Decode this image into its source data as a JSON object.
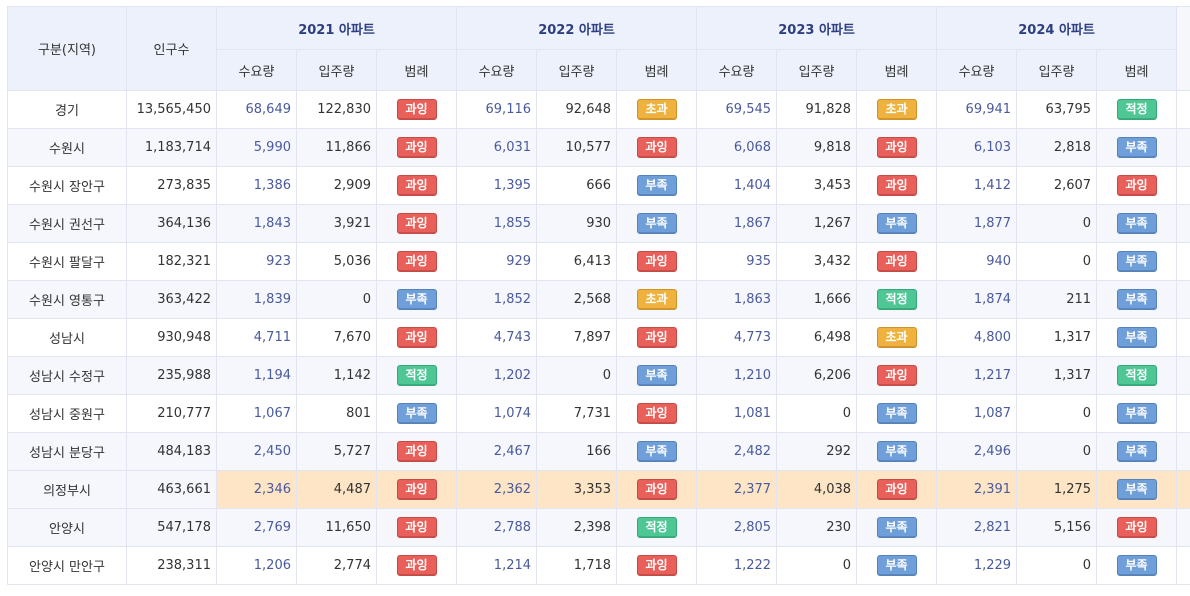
{
  "header": {
    "region": "구분(지역)",
    "population": "인구수",
    "years": [
      "2021 아파트",
      "2022 아파트",
      "2023 아파트",
      "2024 아파트"
    ],
    "sub": {
      "demand": "수요량",
      "supply": "입주량",
      "legend": "범례"
    }
  },
  "legend_colors": {
    "과잉": "#e9605a",
    "초과": "#f0b23e",
    "적정": "#4ec795",
    "부족": "#6f9fd8"
  },
  "highlight_color": "#fde5c6",
  "rows": [
    {
      "name": "경기",
      "pop": "13,565,450",
      "y": [
        [
          "68,649",
          "122,830",
          "과잉"
        ],
        [
          "69,116",
          "92,648",
          "초과"
        ],
        [
          "69,545",
          "91,828",
          "초과"
        ],
        [
          "69,941",
          "63,795",
          "적정"
        ]
      ]
    },
    {
      "name": "수원시",
      "pop": "1,183,714",
      "y": [
        [
          "5,990",
          "11,866",
          "과잉"
        ],
        [
          "6,031",
          "10,577",
          "과잉"
        ],
        [
          "6,068",
          "9,818",
          "과잉"
        ],
        [
          "6,103",
          "2,818",
          "부족"
        ]
      ]
    },
    {
      "name": "수원시 장안구",
      "pop": "273,835",
      "y": [
        [
          "1,386",
          "2,909",
          "과잉"
        ],
        [
          "1,395",
          "666",
          "부족"
        ],
        [
          "1,404",
          "3,453",
          "과잉"
        ],
        [
          "1,412",
          "2,607",
          "과잉"
        ]
      ]
    },
    {
      "name": "수원시 권선구",
      "pop": "364,136",
      "y": [
        [
          "1,843",
          "3,921",
          "과잉"
        ],
        [
          "1,855",
          "930",
          "부족"
        ],
        [
          "1,867",
          "1,267",
          "부족"
        ],
        [
          "1,877",
          "0",
          "부족"
        ]
      ]
    },
    {
      "name": "수원시 팔달구",
      "pop": "182,321",
      "y": [
        [
          "923",
          "5,036",
          "과잉"
        ],
        [
          "929",
          "6,413",
          "과잉"
        ],
        [
          "935",
          "3,432",
          "과잉"
        ],
        [
          "940",
          "0",
          "부족"
        ]
      ]
    },
    {
      "name": "수원시 영통구",
      "pop": "363,422",
      "y": [
        [
          "1,839",
          "0",
          "부족"
        ],
        [
          "1,852",
          "2,568",
          "초과"
        ],
        [
          "1,863",
          "1,666",
          "적정"
        ],
        [
          "1,874",
          "211",
          "부족"
        ]
      ]
    },
    {
      "name": "성남시",
      "pop": "930,948",
      "y": [
        [
          "4,711",
          "7,670",
          "과잉"
        ],
        [
          "4,743",
          "7,897",
          "과잉"
        ],
        [
          "4,773",
          "6,498",
          "초과"
        ],
        [
          "4,800",
          "1,317",
          "부족"
        ]
      ]
    },
    {
      "name": "성남시 수정구",
      "pop": "235,988",
      "y": [
        [
          "1,194",
          "1,142",
          "적정"
        ],
        [
          "1,202",
          "0",
          "부족"
        ],
        [
          "1,210",
          "6,206",
          "과잉"
        ],
        [
          "1,217",
          "1,317",
          "적정"
        ]
      ]
    },
    {
      "name": "성남시 중원구",
      "pop": "210,777",
      "y": [
        [
          "1,067",
          "801",
          "부족"
        ],
        [
          "1,074",
          "7,731",
          "과잉"
        ],
        [
          "1,081",
          "0",
          "부족"
        ],
        [
          "1,087",
          "0",
          "부족"
        ]
      ]
    },
    {
      "name": "성남시 분당구",
      "pop": "484,183",
      "y": [
        [
          "2,450",
          "5,727",
          "과잉"
        ],
        [
          "2,467",
          "166",
          "부족"
        ],
        [
          "2,482",
          "292",
          "부족"
        ],
        [
          "2,496",
          "0",
          "부족"
        ]
      ]
    },
    {
      "name": "의정부시",
      "pop": "463,661",
      "highlight": true,
      "y": [
        [
          "2,346",
          "4,487",
          "과잉"
        ],
        [
          "2,362",
          "3,353",
          "과잉"
        ],
        [
          "2,377",
          "4,038",
          "과잉"
        ],
        [
          "2,391",
          "1,275",
          "부족"
        ]
      ]
    },
    {
      "name": "안양시",
      "pop": "547,178",
      "y": [
        [
          "2,769",
          "11,650",
          "과잉"
        ],
        [
          "2,788",
          "2,398",
          "적정"
        ],
        [
          "2,805",
          "230",
          "부족"
        ],
        [
          "2,821",
          "5,156",
          "과잉"
        ]
      ]
    },
    {
      "name": "안양시 만안구",
      "pop": "238,311",
      "y": [
        [
          "1,206",
          "2,774",
          "과잉"
        ],
        [
          "1,214",
          "1,718",
          "과잉"
        ],
        [
          "1,222",
          "0",
          "부족"
        ],
        [
          "1,229",
          "0",
          "부족"
        ]
      ]
    }
  ]
}
